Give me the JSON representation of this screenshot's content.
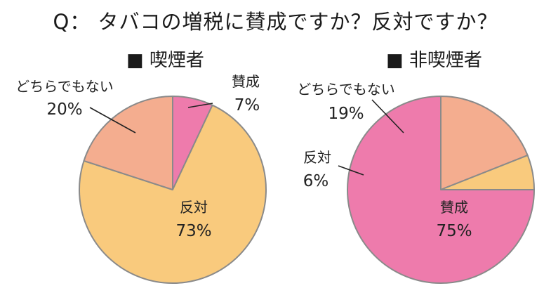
{
  "title": "Q： タバコの増税に賛成ですか？反対ですか？",
  "chart_data": [
    {
      "type": "pie",
      "title": "■ 喫煙者",
      "slices": [
        {
          "label": "賛成",
          "value": 7,
          "value_label": "7%",
          "color": "#EE7BAC"
        },
        {
          "label": "反対",
          "value": 73,
          "value_label": "73%",
          "color": "#F9CA7D"
        },
        {
          "label": "どちらでもない",
          "value": 20,
          "value_label": "20%",
          "color": "#F4AD8F"
        }
      ]
    },
    {
      "type": "pie",
      "title": "■ 非喫煙者",
      "slices": [
        {
          "label": "賛成",
          "value": 75,
          "value_label": "75%",
          "color": "#EE7BAC"
        },
        {
          "label": "反対",
          "value": 6,
          "value_label": "6%",
          "color": "#F9CA7D"
        },
        {
          "label": "どちらでもない",
          "value": 19,
          "value_label": "19%",
          "color": "#F4AD8F"
        }
      ]
    }
  ]
}
